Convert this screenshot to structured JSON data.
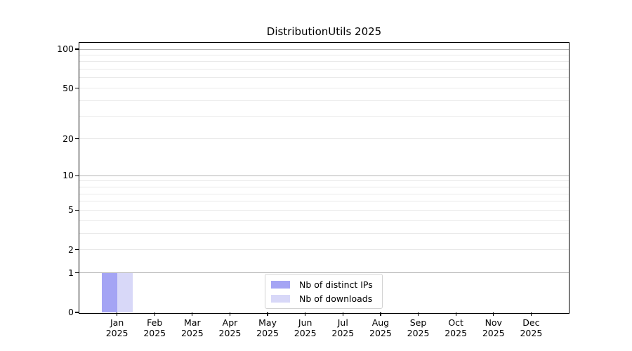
{
  "figure": {
    "title": "DistributionUtils 2025",
    "background_color": "#ffffff",
    "spine_color": "#000000",
    "major_grid_color": "#b6b6b6",
    "minor_grid_color": "#e9e9e9"
  },
  "chart_data": {
    "type": "bar",
    "title": "DistributionUtils 2025",
    "xlabel": "",
    "ylabel": "",
    "months": [
      "Jan",
      "Feb",
      "Mar",
      "Apr",
      "May",
      "Jun",
      "Jul",
      "Aug",
      "Sep",
      "Oct",
      "Nov",
      "Dec"
    ],
    "year_label": "2025",
    "categories": [
      "Jan 2025",
      "Feb 2025",
      "Mar 2025",
      "Apr 2025",
      "May 2025",
      "Jun 2025",
      "Jul 2025",
      "Aug 2025",
      "Sep 2025",
      "Oct 2025",
      "Nov 2025",
      "Dec 2025"
    ],
    "series": [
      {
        "name": "Nb of distinct IPs",
        "color": "#a4a4f4",
        "values": [
          1,
          0,
          0,
          0,
          0,
          0,
          0,
          0,
          0,
          0,
          0,
          0
        ]
      },
      {
        "name": "Nb of downloads",
        "color": "#d8d8f8",
        "values": [
          1,
          0,
          0,
          0,
          0,
          0,
          0,
          0,
          0,
          0,
          0,
          0
        ]
      }
    ],
    "yscale": "log1p",
    "ylim": [
      0,
      100
    ],
    "yticks": [
      0,
      1,
      2,
      5,
      10,
      20,
      50,
      100
    ],
    "y_major_gridlines": [
      1,
      10,
      100
    ],
    "y_minor_gridlines": [
      2,
      3,
      4,
      5,
      6,
      7,
      8,
      9,
      20,
      30,
      40,
      50,
      60,
      70,
      80,
      90
    ],
    "grid": "horizontal",
    "legend": {
      "position": "lower center",
      "labels": [
        "Nb of distinct IPs",
        "Nb of downloads"
      ]
    }
  }
}
